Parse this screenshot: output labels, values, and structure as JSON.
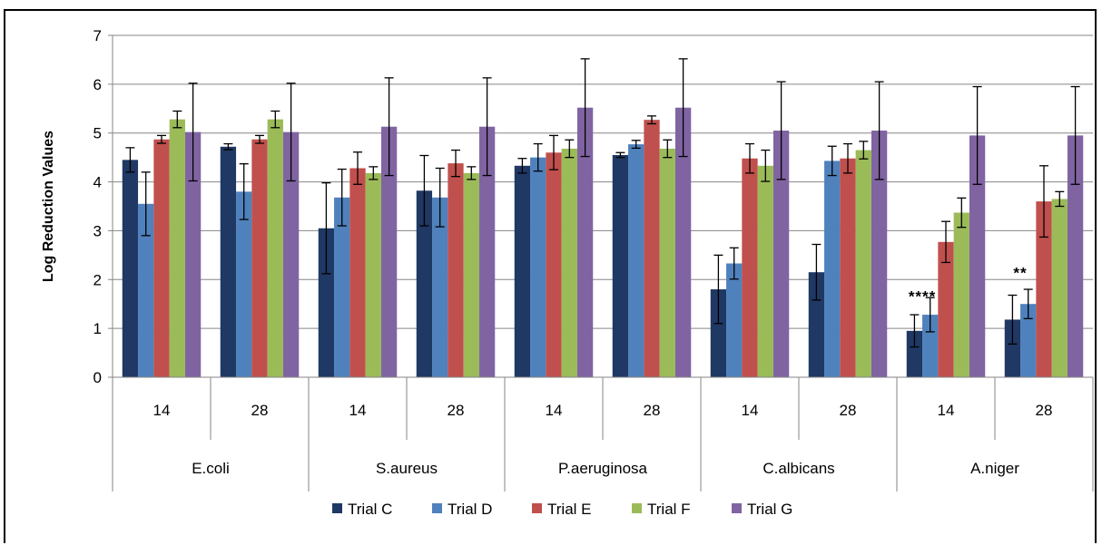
{
  "chart_data": {
    "type": "bar",
    "title": "",
    "ylabel": "Log Reduction Values",
    "xlabel": "",
    "ylim": [
      0,
      7
    ],
    "yticks": [
      0,
      1,
      2,
      3,
      4,
      5,
      6,
      7
    ],
    "grid": true,
    "legend_position": "bottom",
    "groups": [
      "E.coli",
      "S.aureus",
      "P.aeruginosa",
      "C.albicans",
      "A.niger"
    ],
    "categories": [
      "14",
      "28",
      "14",
      "28",
      "14",
      "28",
      "14",
      "28",
      "14",
      "28"
    ],
    "series": [
      {
        "name": "Trial C",
        "color": "#1F3864",
        "values": [
          4.45,
          4.72,
          3.05,
          3.82,
          4.33,
          4.55,
          1.8,
          2.15,
          0.95,
          1.18
        ],
        "errors": [
          0.25,
          0.06,
          0.93,
          0.72,
          0.15,
          0.05,
          0.7,
          0.57,
          0.33,
          0.5
        ]
      },
      {
        "name": "Trial D",
        "color": "#4F81BD",
        "values": [
          3.55,
          3.8,
          3.68,
          3.68,
          4.5,
          4.77,
          2.33,
          4.43,
          1.28,
          1.5
        ],
        "errors": [
          0.65,
          0.57,
          0.58,
          0.6,
          0.28,
          0.08,
          0.32,
          0.3,
          0.35,
          0.3
        ]
      },
      {
        "name": "Trial E",
        "color": "#C0504D",
        "values": [
          4.87,
          4.87,
          4.28,
          4.38,
          4.6,
          5.27,
          4.48,
          4.48,
          2.77,
          3.6
        ],
        "errors": [
          0.08,
          0.08,
          0.33,
          0.27,
          0.35,
          0.08,
          0.3,
          0.3,
          0.42,
          0.73
        ]
      },
      {
        "name": "Trial F",
        "color": "#9BBB59",
        "values": [
          5.28,
          5.28,
          4.18,
          4.18,
          4.68,
          4.68,
          4.33,
          4.65,
          3.37,
          3.65
        ],
        "errors": [
          0.17,
          0.17,
          0.13,
          0.13,
          0.18,
          0.18,
          0.32,
          0.18,
          0.3,
          0.15
        ]
      },
      {
        "name": "Trial G",
        "color": "#8064A2",
        "values": [
          5.02,
          5.02,
          5.13,
          5.13,
          5.52,
          5.52,
          5.05,
          5.05,
          4.95,
          4.95
        ],
        "errors": [
          1.0,
          1.0,
          1.0,
          1.0,
          1.0,
          1.0,
          1.0,
          1.0,
          1.0,
          1.0
        ]
      }
    ],
    "annotations": [
      {
        "category_index": 8,
        "text": "****",
        "y": 1.7
      },
      {
        "category_index": 9,
        "text": "**",
        "y": 2.18
      }
    ]
  }
}
